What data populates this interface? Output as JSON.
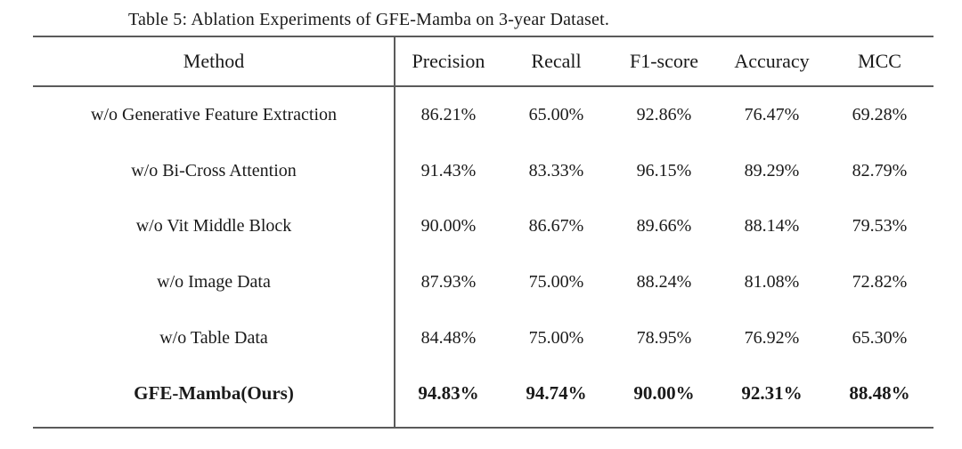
{
  "table": {
    "caption": "Table 5: Ablation Experiments of GFE-Mamba on 3-year Dataset.",
    "columns": [
      "Method",
      "Precision",
      "Recall",
      "F1-score",
      "Accuracy",
      "MCC"
    ],
    "rows": [
      {
        "method": "w/o Generative Feature Extraction",
        "values": [
          "86.21%",
          "65.00%",
          "92.86%",
          "76.47%",
          "69.28%"
        ],
        "bold": false
      },
      {
        "method": "w/o Bi-Cross Attention",
        "values": [
          "91.43%",
          "83.33%",
          "96.15%",
          "89.29%",
          "82.79%"
        ],
        "bold": false
      },
      {
        "method": "w/o Vit Middle Block",
        "values": [
          "90.00%",
          "86.67%",
          "89.66%",
          "88.14%",
          "79.53%"
        ],
        "bold": false
      },
      {
        "method": "w/o Image Data",
        "values": [
          "87.93%",
          "75.00%",
          "88.24%",
          "81.08%",
          "72.82%"
        ],
        "bold": false
      },
      {
        "method": "w/o Table Data",
        "values": [
          "84.48%",
          "75.00%",
          "78.95%",
          "76.92%",
          "65.30%"
        ],
        "bold": false
      },
      {
        "method": "GFE-Mamba(Ours)",
        "values": [
          "94.83%",
          "94.74%",
          "90.00%",
          "92.31%",
          "88.48%"
        ],
        "bold": true
      }
    ],
    "colors": {
      "line": "#5a5a5a",
      "text": "#1a1a1a",
      "background": "#ffffff"
    }
  }
}
